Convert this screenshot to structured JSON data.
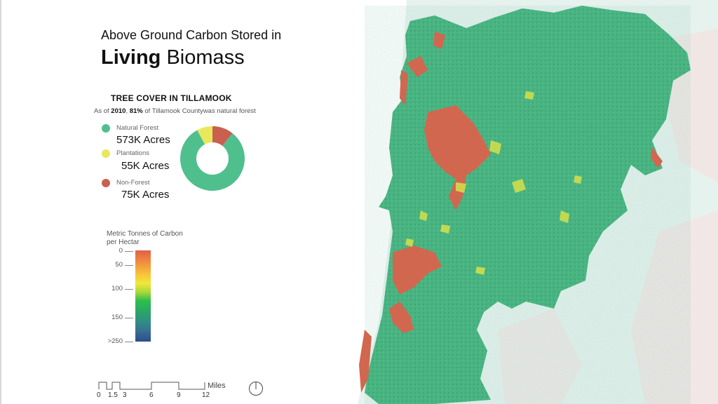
{
  "title": {
    "line1": "Above Ground Carbon Stored in",
    "line2_bold": "Living",
    "line2_rest": " Biomass"
  },
  "tree_cover": {
    "heading": "TREE COVER IN TILLAMOOK",
    "subtitle_prefix": "As of ",
    "subtitle_year": "2010",
    "subtitle_mid": ", ",
    "subtitle_pct": "81%",
    "subtitle_suffix": " of Tillamook Countywas natural forest",
    "categories": [
      {
        "label": "Natural Forest",
        "value": "573K Acres",
        "acres": 573000,
        "color": "#4fc08d"
      },
      {
        "label": "Plantations",
        "value": "55K Acres",
        "acres": 55000,
        "color": "#e8e85a"
      },
      {
        "label": "Non-Forest",
        "value": "75K Acres",
        "acres": 75000,
        "color": "#c9604f"
      }
    ]
  },
  "colorbar": {
    "title": "Metric Tonnes of Carbon per Hectar",
    "ticks": [
      "0",
      "50",
      "100",
      "150",
      ">250"
    ]
  },
  "scale": {
    "labels": [
      "0",
      "1.5",
      "3",
      "6",
      "9",
      "12"
    ],
    "unit": "Miles"
  },
  "map": {
    "colors": {
      "forest": "#3fb27a",
      "non_forest": "#d2674f",
      "plantation": "#d6e04a",
      "background_land": "#e6f2ee",
      "background_pink": "#f5e4e3"
    }
  }
}
